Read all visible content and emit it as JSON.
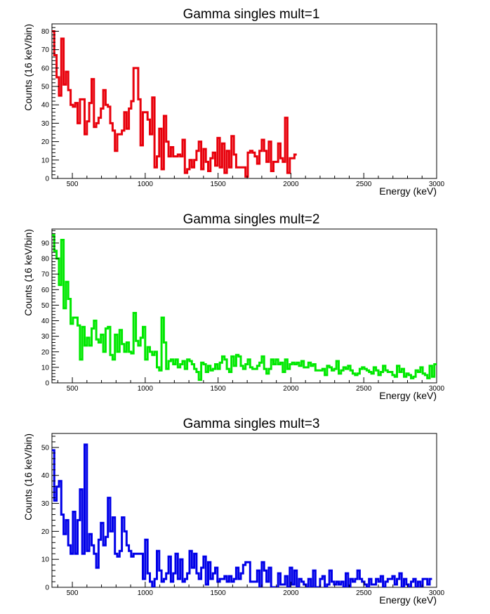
{
  "chart_data": [
    {
      "type": "histogram",
      "title": "Gamma singles mult=1",
      "xlabel": "Energy (keV)",
      "ylabel": "Counts (16 keV/bin)",
      "xlim": [
        360,
        3000
      ],
      "ylim": [
        0,
        84
      ],
      "x_ticks": [
        500,
        1000,
        1500,
        2000,
        2500,
        3000
      ],
      "y_ticks": [
        0,
        10,
        20,
        30,
        40,
        50,
        60,
        70,
        80
      ],
      "color": "#e8000b",
      "bin_start": 360,
      "bin_width": 16,
      "values": [
        80,
        67,
        55,
        45,
        76,
        51,
        58,
        48,
        40,
        39,
        41,
        30,
        43,
        43,
        24,
        31,
        41,
        54,
        28,
        30,
        33,
        38,
        48,
        40,
        39,
        30,
        26,
        15,
        24,
        24,
        26,
        36,
        27,
        38,
        42,
        60,
        60,
        43,
        18,
        36,
        36,
        32,
        24,
        44,
        6,
        12,
        27,
        5,
        34,
        20,
        12,
        17,
        12,
        12,
        13,
        12,
        21,
        3,
        5,
        10,
        6,
        10,
        15,
        20,
        5,
        16,
        9,
        4,
        11,
        14,
        7,
        22,
        6,
        19,
        3,
        15,
        6,
        23,
        13,
        6,
        6,
        6,
        6,
        1,
        14,
        15,
        14,
        12,
        8,
        15,
        21,
        15,
        9,
        20,
        4,
        9,
        9,
        19,
        11,
        9,
        33,
        3,
        11,
        11,
        13
      ]
    },
    {
      "type": "histogram",
      "title": "Gamma singles mult=2",
      "xlabel": "Energy (keV)",
      "ylabel": "Counts (16 keV/bin)",
      "xlim": [
        360,
        3000
      ],
      "ylim": [
        0,
        99
      ],
      "x_ticks": [
        500,
        1000,
        1500,
        2000,
        2500,
        3000
      ],
      "y_ticks": [
        0,
        10,
        20,
        30,
        40,
        50,
        60,
        70,
        80,
        90
      ],
      "color": "#00e800",
      "bin_start": 360,
      "bin_width": 16,
      "values": [
        95,
        85,
        80,
        63,
        92,
        48,
        65,
        54,
        38,
        42,
        42,
        37,
        15,
        36,
        24,
        29,
        24,
        35,
        40,
        28,
        26,
        31,
        20,
        35,
        36,
        18,
        15,
        31,
        20,
        34,
        25,
        20,
        26,
        20,
        19,
        45,
        27,
        24,
        29,
        36,
        15,
        23,
        20,
        18,
        20,
        10,
        8,
        42,
        26,
        9,
        14,
        15,
        12,
        15,
        10,
        12,
        14,
        9,
        15,
        14,
        12,
        9,
        7,
        2,
        13,
        12,
        7,
        11,
        8,
        9,
        12,
        9,
        13,
        17,
        15,
        9,
        7,
        17,
        11,
        18,
        17,
        11,
        9,
        12,
        15,
        10,
        9,
        9,
        11,
        13,
        17,
        9,
        6,
        9,
        15,
        12,
        15,
        12,
        13,
        7,
        15,
        9,
        12,
        13,
        12,
        13,
        11,
        14,
        10,
        10,
        13,
        11,
        12,
        8,
        8,
        8,
        9,
        5,
        11,
        10,
        8,
        9,
        14,
        6,
        8,
        10,
        9,
        11,
        8,
        6,
        5,
        6,
        9,
        10,
        9,
        8,
        7,
        6,
        10,
        8,
        5,
        7,
        11,
        8,
        7,
        7,
        5,
        4,
        11,
        7,
        9,
        4,
        6,
        5,
        3,
        4,
        8,
        7,
        10,
        6,
        5,
        3,
        11,
        4,
        12
      ]
    },
    {
      "type": "histogram",
      "title": "Gamma singles mult=3",
      "xlabel": "Energy (keV)",
      "ylabel": "Counts (16 keV/bin)",
      "xlim": [
        360,
        3000
      ],
      "ylim": [
        0,
        55
      ],
      "x_ticks": [
        500,
        1000,
        1500,
        2000,
        2500,
        3000
      ],
      "y_ticks": [
        0,
        10,
        20,
        30,
        40,
        50
      ],
      "color": "#0000e8",
      "bin_start": 360,
      "bin_width": 16,
      "values": [
        49,
        31,
        36,
        38,
        26,
        19,
        24,
        15,
        12,
        27,
        12,
        24,
        35,
        12,
        51,
        13,
        19,
        15,
        12,
        7,
        17,
        23,
        15,
        18,
        32,
        20,
        25,
        12,
        11,
        13,
        25,
        20,
        15,
        13,
        11,
        12,
        12,
        12,
        12,
        3,
        17,
        5,
        2,
        0,
        3,
        13,
        6,
        2,
        3,
        5,
        11,
        2,
        5,
        12,
        3,
        10,
        2,
        3,
        5,
        13,
        7,
        12,
        5,
        3,
        7,
        11,
        1,
        9,
        3,
        5,
        7,
        2,
        3,
        3,
        4,
        2,
        4,
        2,
        3,
        7,
        3,
        5,
        8,
        9,
        9,
        2,
        2,
        2,
        6,
        0,
        9,
        6,
        2,
        7,
        0,
        0,
        0,
        5,
        1,
        1,
        4,
        0,
        7,
        1,
        6,
        0,
        3,
        2,
        1,
        0,
        3,
        0,
        6,
        0,
        0,
        3,
        4,
        0,
        1,
        6,
        2,
        1,
        2,
        1,
        2,
        0,
        5,
        0,
        3,
        2,
        3,
        6,
        3,
        2,
        1,
        0,
        3,
        1,
        1,
        3,
        2,
        4,
        0,
        2,
        3,
        3,
        4,
        1,
        3,
        5,
        0,
        3,
        1,
        0,
        2,
        3,
        0,
        2,
        0,
        3,
        3,
        1,
        3
      ]
    }
  ]
}
